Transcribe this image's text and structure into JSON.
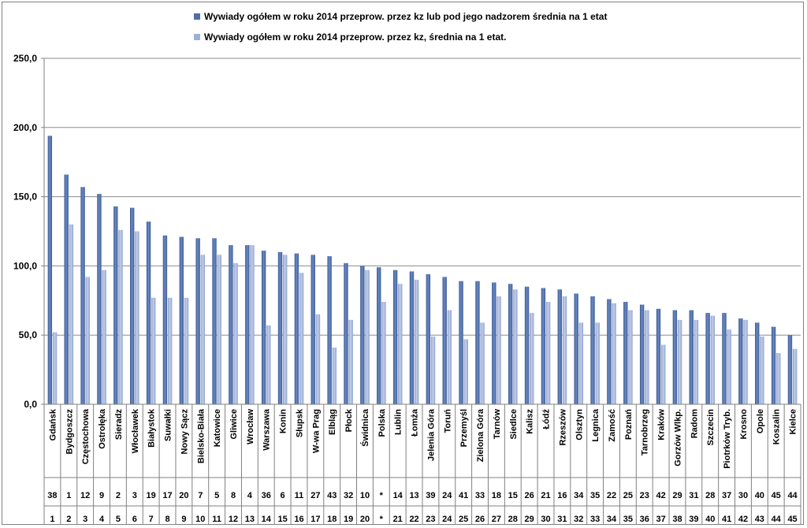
{
  "chart_data": {
    "type": "bar",
    "title": "",
    "xlabel": "",
    "ylabel": "",
    "ylim": [
      0,
      250
    ],
    "yticks": [
      "0,0",
      "50,0",
      "100,0",
      "150,0",
      "200,0",
      "250,0"
    ],
    "grid": true,
    "legend_position": "top",
    "categories": [
      "Gdańsk",
      "Bydgoszcz",
      "Częstochowa",
      "Ostrołęka",
      "Sieradz",
      "Włocławek",
      "Białystok",
      "Suwałki",
      "Nowy Sącz",
      "Bielsko-Biała",
      "Katowice",
      "Gliwice",
      "Wrocław",
      "Warszawa",
      "Konin",
      "Słupsk",
      "W-wa Prag",
      "Elbląg",
      "Płock",
      "Świdnica",
      "Polska",
      "Lublin",
      "Łomża",
      "Jelenia Góra",
      "Toruń",
      "Przemyśl",
      "Zielona Góra",
      "Tarnów",
      "Siedlce",
      "Kalisz",
      "Łódź",
      "Rzeszów",
      "Olsztyn",
      "Legnica",
      "Zamość",
      "Poznań",
      "Tarnobrzeg",
      "Kraków",
      "Gorzów Wlkp.",
      "Radom",
      "Szczecin",
      "Piotrków Tryb.",
      "Krosno",
      "Opole",
      "Koszalin",
      "Kielce"
    ],
    "rank_row_1": [
      "38",
      "1",
      "12",
      "9",
      "2",
      "3",
      "19",
      "17",
      "20",
      "7",
      "5",
      "8",
      "4",
      "36",
      "6",
      "11",
      "27",
      "43",
      "32",
      "10",
      "*",
      "14",
      "13",
      "39",
      "24",
      "41",
      "33",
      "18",
      "15",
      "26",
      "21",
      "16",
      "34",
      "35",
      "22",
      "25",
      "23",
      "42",
      "29",
      "31",
      "28",
      "37",
      "30",
      "40",
      "45",
      "44"
    ],
    "rank_row_2": [
      "1",
      "2",
      "3",
      "4",
      "5",
      "6",
      "7",
      "8",
      "9",
      "10",
      "11",
      "12",
      "13",
      "14",
      "15",
      "16",
      "17",
      "18",
      "19",
      "20",
      "*",
      "21",
      "22",
      "23",
      "24",
      "25",
      "26",
      "27",
      "28",
      "29",
      "30",
      "31",
      "32",
      "33",
      "34",
      "35",
      "36",
      "37",
      "38",
      "39",
      "40",
      "41",
      "42",
      "43",
      "44",
      "45"
    ],
    "series": [
      {
        "name": "Wywiady ogółem  w roku 2014 przeprow. przez kz lub pod jego nadzorem średnia na 1 etat",
        "color": "#4f6fa8",
        "values": [
          194,
          166,
          157,
          152,
          143,
          142,
          132,
          122,
          121,
          120,
          120,
          115,
          115,
          111,
          110,
          109,
          108,
          107,
          102,
          100,
          99,
          97,
          96,
          94,
          92,
          89,
          89,
          88,
          87,
          85,
          84,
          83,
          80,
          78,
          76,
          74,
          72,
          69,
          68,
          68,
          66,
          66,
          62,
          59,
          56,
          50
        ]
      },
      {
        "name": "Wywiady ogółem w roku 2014 przeprow. przez kz, średnia na 1 etat.",
        "color": "#9fb0d8",
        "values": [
          52,
          130,
          92,
          97,
          126,
          125,
          77,
          77,
          77,
          108,
          108,
          102,
          115,
          57,
          108,
          95,
          65,
          41,
          61,
          97,
          74,
          87,
          90,
          49,
          68,
          47,
          59,
          78,
          83,
          66,
          74,
          78,
          59,
          59,
          73,
          68,
          68,
          43,
          61,
          61,
          64,
          54,
          61,
          49,
          37,
          40
        ]
      }
    ]
  }
}
